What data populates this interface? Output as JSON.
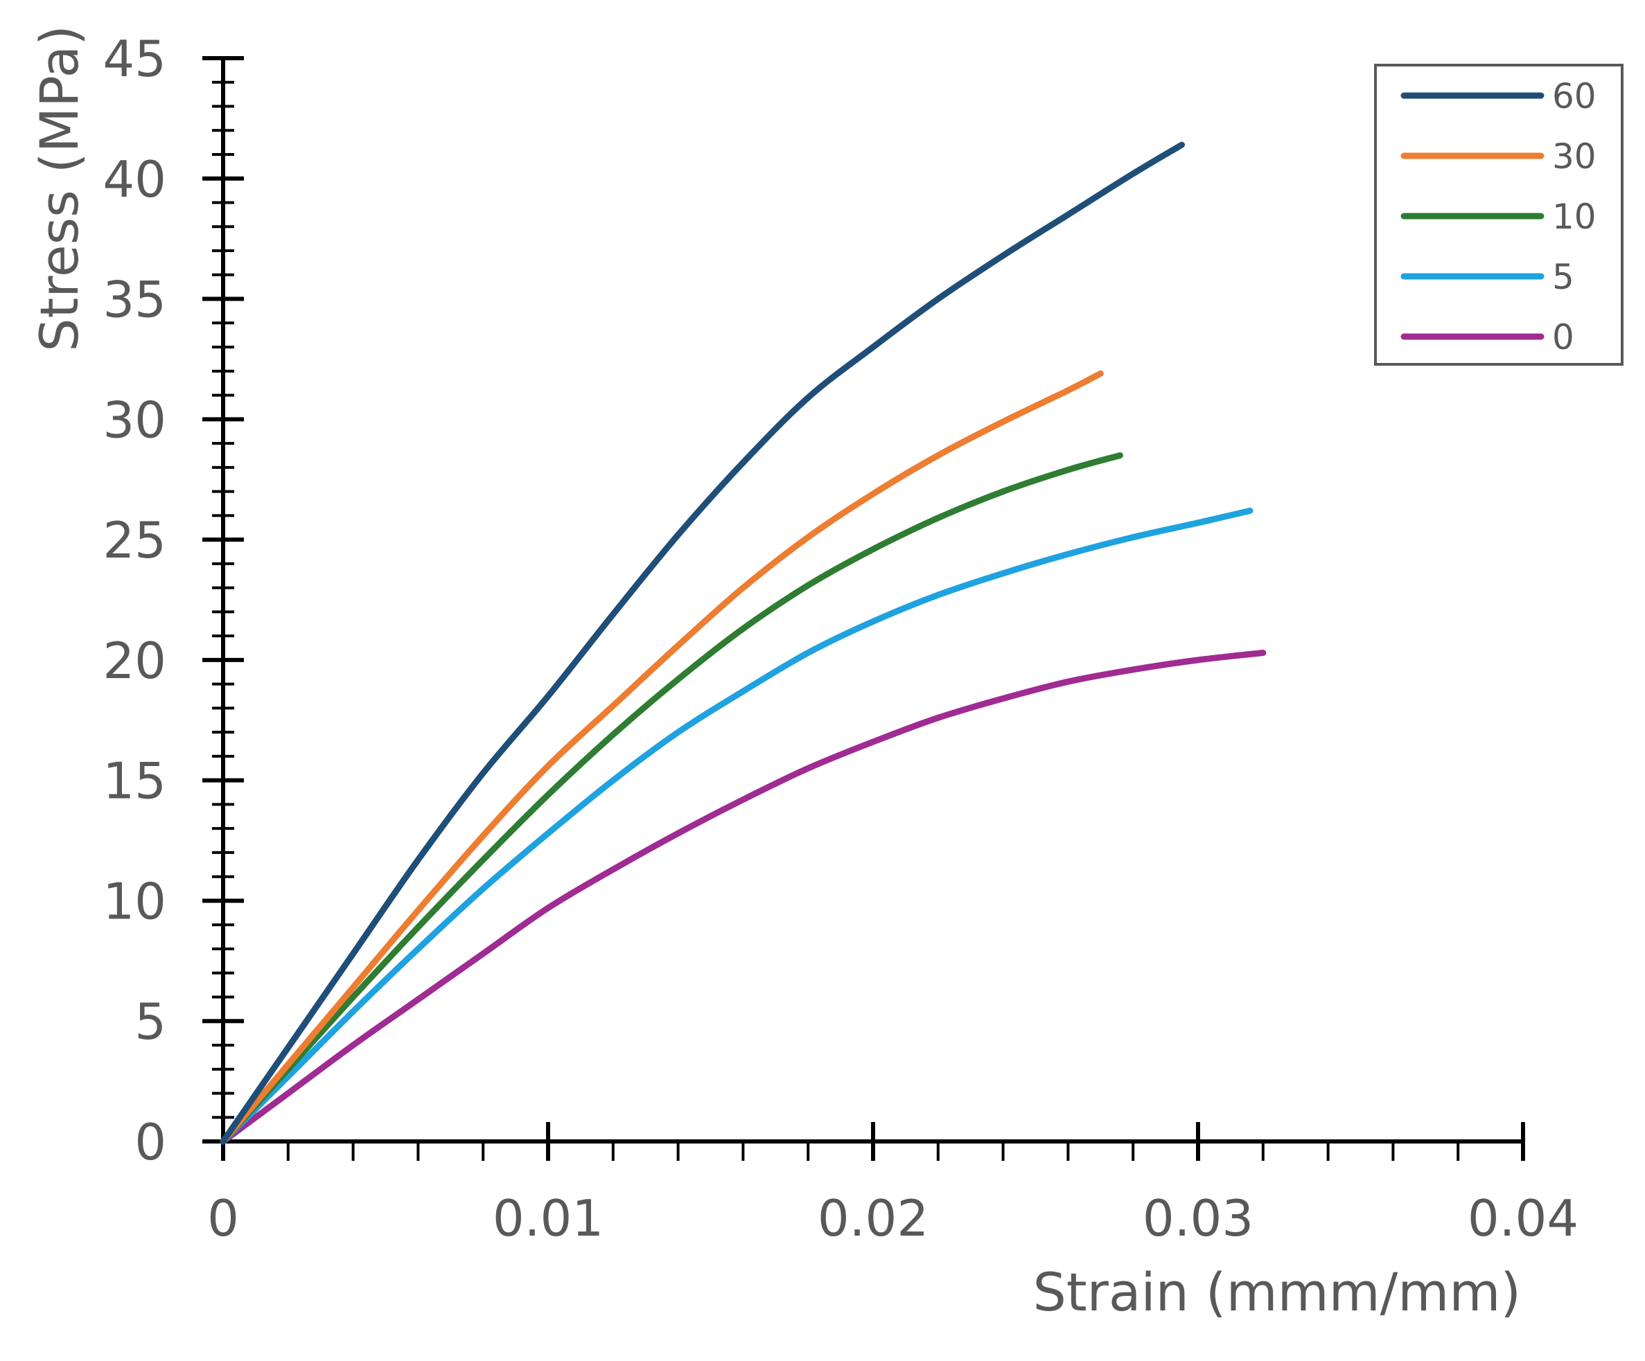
{
  "chart_data": {
    "type": "line",
    "title": "",
    "xlabel": "Strain (mmm/mm)",
    "ylabel": "Stress (MPa)",
    "xlim": [
      0,
      0.04
    ],
    "ylim": [
      0,
      45
    ],
    "x_ticks": [
      0,
      0.01,
      0.02,
      0.03,
      0.04
    ],
    "x_tick_labels": [
      "0",
      "0.01",
      "0.02",
      "0.03",
      "0.04"
    ],
    "x_minor_step": 0.002,
    "y_ticks": [
      0,
      5,
      10,
      15,
      20,
      25,
      30,
      35,
      40,
      45
    ],
    "y_tick_labels": [
      "0",
      "5",
      "10",
      "15",
      "20",
      "25",
      "30",
      "35",
      "40",
      "45"
    ],
    "y_minor_step": 1,
    "grid": false,
    "legend_position": "top-right",
    "series": [
      {
        "name": "60",
        "color": "#1f4e79",
        "points": [
          [
            0,
            0
          ],
          [
            0.002,
            3.9
          ],
          [
            0.004,
            7.8
          ],
          [
            0.006,
            11.7
          ],
          [
            0.008,
            15.3
          ],
          [
            0.01,
            18.5
          ],
          [
            0.012,
            21.9
          ],
          [
            0.014,
            25.2
          ],
          [
            0.016,
            28.2
          ],
          [
            0.018,
            30.9
          ],
          [
            0.02,
            33.0
          ],
          [
            0.022,
            35.0
          ],
          [
            0.024,
            36.8
          ],
          [
            0.026,
            38.5
          ],
          [
            0.028,
            40.2
          ],
          [
            0.0295,
            41.4
          ]
        ]
      },
      {
        "name": "30",
        "color": "#ed7d31",
        "points": [
          [
            0,
            0
          ],
          [
            0.002,
            3.2
          ],
          [
            0.004,
            6.4
          ],
          [
            0.006,
            9.6
          ],
          [
            0.008,
            12.7
          ],
          [
            0.01,
            15.6
          ],
          [
            0.012,
            18.1
          ],
          [
            0.014,
            20.6
          ],
          [
            0.016,
            23.0
          ],
          [
            0.018,
            25.1
          ],
          [
            0.02,
            26.9
          ],
          [
            0.022,
            28.5
          ],
          [
            0.024,
            29.9
          ],
          [
            0.026,
            31.2
          ],
          [
            0.027,
            31.9
          ]
        ]
      },
      {
        "name": "10",
        "color": "#2e7d32",
        "points": [
          [
            0,
            0
          ],
          [
            0.002,
            3.0
          ],
          [
            0.004,
            6.0
          ],
          [
            0.006,
            8.9
          ],
          [
            0.008,
            11.7
          ],
          [
            0.01,
            14.4
          ],
          [
            0.012,
            16.9
          ],
          [
            0.014,
            19.2
          ],
          [
            0.016,
            21.3
          ],
          [
            0.018,
            23.1
          ],
          [
            0.02,
            24.6
          ],
          [
            0.022,
            25.9
          ],
          [
            0.024,
            27.0
          ],
          [
            0.026,
            27.9
          ],
          [
            0.0276,
            28.5
          ]
        ]
      },
      {
        "name": "5",
        "color": "#1fa2e0",
        "points": [
          [
            0,
            0
          ],
          [
            0.002,
            2.7
          ],
          [
            0.004,
            5.4
          ],
          [
            0.006,
            8.0
          ],
          [
            0.008,
            10.5
          ],
          [
            0.01,
            12.8
          ],
          [
            0.012,
            15.0
          ],
          [
            0.014,
            17.0
          ],
          [
            0.016,
            18.7
          ],
          [
            0.018,
            20.3
          ],
          [
            0.02,
            21.6
          ],
          [
            0.022,
            22.7
          ],
          [
            0.024,
            23.6
          ],
          [
            0.026,
            24.4
          ],
          [
            0.028,
            25.1
          ],
          [
            0.03,
            25.7
          ],
          [
            0.0316,
            26.2
          ]
        ]
      },
      {
        "name": "0",
        "color": "#a02b93",
        "points": [
          [
            0,
            0
          ],
          [
            0.002,
            2.0
          ],
          [
            0.004,
            4.0
          ],
          [
            0.006,
            5.9
          ],
          [
            0.008,
            7.8
          ],
          [
            0.01,
            9.7
          ],
          [
            0.012,
            11.3
          ],
          [
            0.014,
            12.8
          ],
          [
            0.016,
            14.2
          ],
          [
            0.018,
            15.5
          ],
          [
            0.02,
            16.6
          ],
          [
            0.022,
            17.6
          ],
          [
            0.024,
            18.4
          ],
          [
            0.026,
            19.1
          ],
          [
            0.028,
            19.6
          ],
          [
            0.03,
            20.0
          ],
          [
            0.032,
            20.3
          ]
        ]
      }
    ]
  }
}
